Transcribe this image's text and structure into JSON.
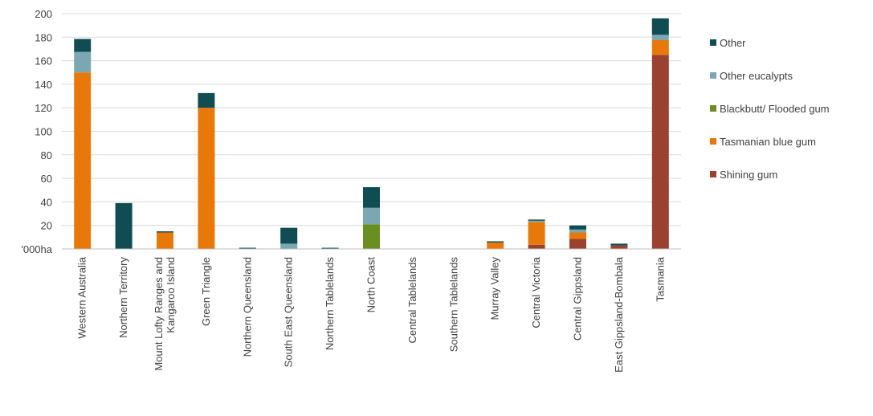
{
  "chart_data": {
    "type": "bar",
    "stacked": true,
    "title": "",
    "xlabel": "",
    "ylabel": "",
    "unit_label": "'000ha",
    "ylim": [
      0,
      200
    ],
    "yticks": [
      20,
      40,
      60,
      80,
      100,
      120,
      140,
      160,
      180,
      200
    ],
    "grid": true,
    "legend_position": "right",
    "categories": [
      [
        "Western Australia"
      ],
      [
        "Northern Territory"
      ],
      [
        "Mount Lofty Ranges and",
        "Kangaroo Island"
      ],
      [
        "Green Triangle"
      ],
      [
        "Northern Queensland"
      ],
      [
        "South East Queensland"
      ],
      [
        "Northern Tablelands"
      ],
      [
        "North Coast"
      ],
      [
        "Central Tablelands"
      ],
      [
        "Southern Tablelands"
      ],
      [
        "Murray Valley"
      ],
      [
        "Central Victoria"
      ],
      [
        "Central Gippsland"
      ],
      [
        "East Gippsland-Bombala"
      ],
      [
        "Tasmania"
      ]
    ],
    "series": [
      {
        "name": "Shining gum",
        "color": "#9b4130",
        "values": [
          0,
          0,
          0,
          0,
          0,
          0,
          0,
          0,
          0,
          0,
          0,
          3.5,
          8.5,
          3,
          165
        ]
      },
      {
        "name": "Tasmanian blue gum",
        "color": "#e8780a",
        "values": [
          150,
          0,
          14,
          120,
          0,
          0,
          0,
          0,
          0,
          0,
          5.5,
          19.5,
          5.5,
          0,
          12.5
        ]
      },
      {
        "name": "Blackbutt/ Flooded gum",
        "color": "#6b8e23",
        "values": [
          0,
          0,
          0,
          0,
          0,
          0,
          0,
          21,
          0,
          0,
          0,
          0,
          0,
          0,
          0
        ]
      },
      {
        "name": "Other eucalypts",
        "color": "#7ba7b3",
        "values": [
          17.5,
          0,
          0,
          0,
          0,
          4.5,
          0,
          14,
          0,
          0,
          0,
          1,
          2.5,
          0,
          4.5
        ]
      },
      {
        "name": "Other",
        "color": "#0f4d52",
        "values": [
          11,
          39,
          1,
          12.5,
          1,
          13.5,
          1,
          17.5,
          0,
          0,
          1,
          1,
          3.5,
          1.5,
          14
        ]
      }
    ]
  }
}
